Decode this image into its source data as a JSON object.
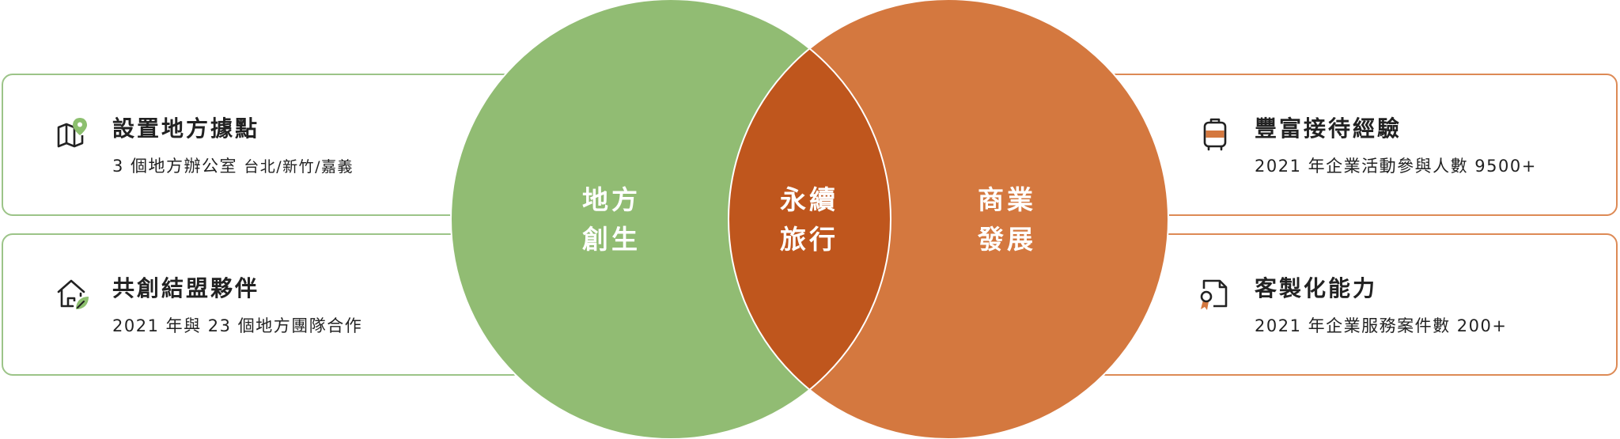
{
  "venn": {
    "left_circle": {
      "line1": "地方",
      "line2": "創生",
      "color": "#91bc73"
    },
    "right_circle": {
      "line1": "商業",
      "line2": "發展",
      "color": "#d4783f"
    },
    "intersection": {
      "line1": "永續",
      "line2": "旅行",
      "color": "#bf561d"
    }
  },
  "cards": {
    "top_left": {
      "icon": "map-pin-icon",
      "title": "設置地方據點",
      "desc_main": "3 個地方辦公室 ",
      "desc_small": "台北/新竹/嘉義"
    },
    "bottom_left": {
      "icon": "house-leaf-icon",
      "title": "共創結盟夥伴",
      "desc_main": "2021 年與 23 個地方團隊合作"
    },
    "top_right": {
      "icon": "suitcase-icon",
      "title": "豐富接待經驗",
      "desc_main": "2021 年企業活動參與人數 9500+"
    },
    "bottom_right": {
      "icon": "document-badge-icon",
      "title": "客製化能力",
      "desc_main": "2021 年企業服務案件數 200+"
    }
  }
}
